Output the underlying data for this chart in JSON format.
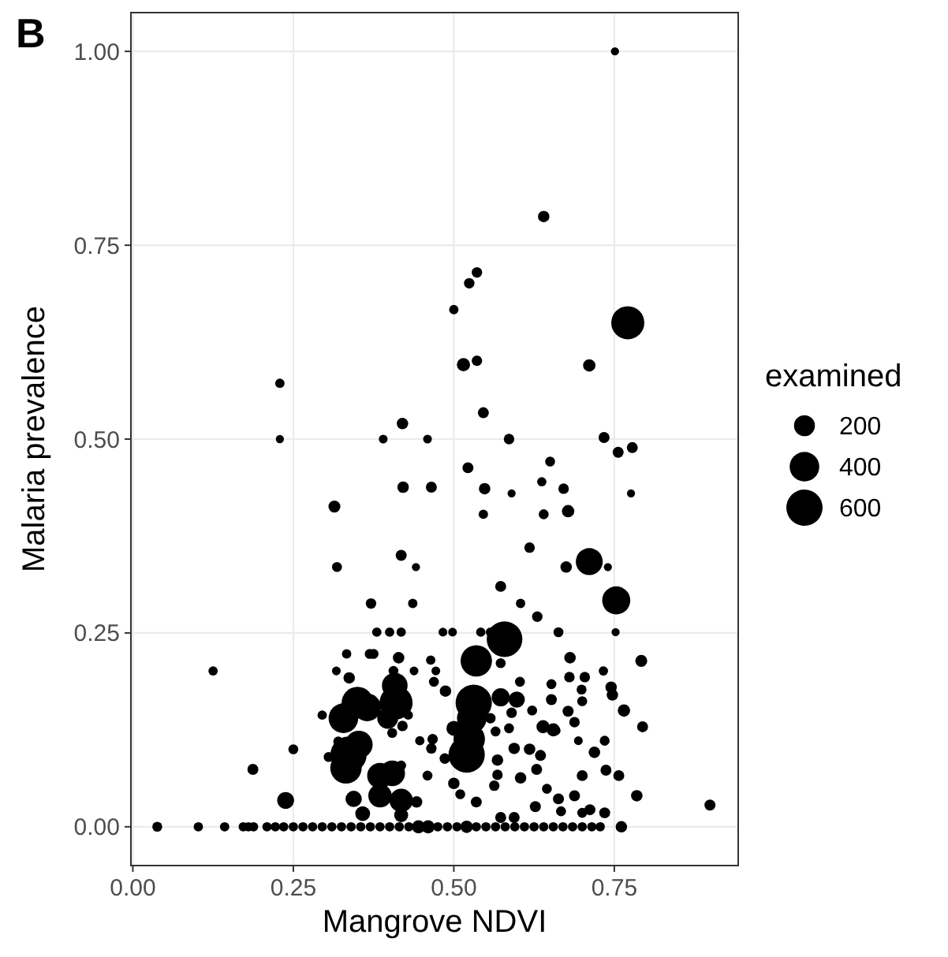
{
  "chart_data": {
    "type": "bubble",
    "xlabel": "Mangrove NDVI",
    "ylabel": "Malaria prevalence",
    "legend_title": "examined",
    "annotations": [
      "B"
    ],
    "x": [
      0.751,
      0.64,
      0.536,
      0.524,
      0.5,
      0.771,
      0.515,
      0.536,
      0.711,
      0.229,
      0.546,
      0.42,
      0.229,
      0.39,
      0.459,
      0.586,
      0.734,
      0.756,
      0.778,
      0.522,
      0.65,
      0.421,
      0.465,
      0.548,
      0.59,
      0.637,
      0.671,
      0.776,
      0.314,
      0.546,
      0.64,
      0.678,
      0.618,
      0.418,
      0.441,
      0.318,
      0.675,
      0.711,
      0.74,
      0.573,
      0.753,
      0.371,
      0.436,
      0.604,
      0.63,
      0.38,
      0.4,
      0.418,
      0.483,
      0.498,
      0.542,
      0.557,
      0.663,
      0.752,
      0.579,
      0.535,
      0.573,
      0.333,
      0.369,
      0.375,
      0.414,
      0.464,
      0.681,
      0.792,
      0.125,
      0.317,
      0.337,
      0.406,
      0.438,
      0.472,
      0.733,
      0.68,
      0.704,
      0.469,
      0.487,
      0.603,
      0.652,
      0.699,
      0.745,
      0.747,
      0.652,
      0.7,
      0.35,
      0.365,
      0.328,
      0.295,
      0.408,
      0.41,
      0.397,
      0.429,
      0.531,
      0.528,
      0.573,
      0.598,
      0.622,
      0.59,
      0.678,
      0.688,
      0.765,
      0.794,
      0.639,
      0.655,
      0.586,
      0.565,
      0.557,
      0.404,
      0.42,
      0.447,
      0.467,
      0.32,
      0.352,
      0.336,
      0.332,
      0.305,
      0.52,
      0.524,
      0.5,
      0.486,
      0.465,
      0.568,
      0.594,
      0.618,
      0.635,
      0.659,
      0.694,
      0.719,
      0.735,
      0.25,
      0.187,
      0.385,
      0.404,
      0.418,
      0.459,
      0.5,
      0.51,
      0.568,
      0.563,
      0.604,
      0.629,
      0.7,
      0.737,
      0.757,
      0.238,
      0.344,
      0.385,
      0.418,
      0.442,
      0.358,
      0.418,
      0.535,
      0.627,
      0.645,
      0.663,
      0.688,
      0.712,
      0.735,
      0.785,
      0.899,
      0.573,
      0.594,
      0.667,
      0.7,
      0.038,
      0.102,
      0.143,
      0.172,
      0.18,
      0.188,
      0.209,
      0.222,
      0.235,
      0.25,
      0.265,
      0.28,
      0.295,
      0.31,
      0.325,
      0.34,
      0.355,
      0.37,
      0.385,
      0.4,
      0.415,
      0.43,
      0.445,
      0.46,
      0.475,
      0.49,
      0.505,
      0.52,
      0.535,
      0.55,
      0.565,
      0.58,
      0.595,
      0.61,
      0.625,
      0.64,
      0.655,
      0.67,
      0.685,
      0.7,
      0.715,
      0.728,
      0.761
    ],
    "values": [
      1.0,
      0.787,
      0.715,
      0.701,
      0.667,
      0.65,
      0.596,
      0.601,
      0.595,
      0.572,
      0.534,
      0.52,
      0.5,
      0.5,
      0.5,
      0.5,
      0.502,
      0.483,
      0.489,
      0.463,
      0.471,
      0.438,
      0.438,
      0.436,
      0.43,
      0.445,
      0.436,
      0.43,
      0.413,
      0.403,
      0.403,
      0.407,
      0.36,
      0.35,
      0.335,
      0.335,
      0.335,
      0.342,
      0.335,
      0.31,
      0.292,
      0.288,
      0.288,
      0.288,
      0.271,
      0.251,
      0.251,
      0.251,
      0.251,
      0.251,
      0.251,
      0.251,
      0.251,
      0.251,
      0.242,
      0.214,
      0.211,
      0.223,
      0.223,
      0.223,
      0.218,
      0.215,
      0.218,
      0.214,
      0.201,
      0.201,
      0.192,
      0.201,
      0.201,
      0.201,
      0.201,
      0.193,
      0.193,
      0.187,
      0.175,
      0.187,
      0.184,
      0.177,
      0.18,
      0.17,
      0.164,
      0.162,
      0.16,
      0.154,
      0.14,
      0.144,
      0.182,
      0.16,
      0.14,
      0.144,
      0.16,
      0.14,
      0.167,
      0.164,
      0.15,
      0.147,
      0.149,
      0.135,
      0.15,
      0.129,
      0.129,
      0.125,
      0.127,
      0.123,
      0.14,
      0.121,
      0.13,
      0.111,
      0.113,
      0.11,
      0.106,
      0.093,
      0.076,
      0.09,
      0.093,
      0.113,
      0.127,
      0.088,
      0.101,
      0.086,
      0.101,
      0.1,
      0.092,
      0.124,
      0.111,
      0.096,
      0.111,
      0.1,
      0.074,
      0.066,
      0.069,
      0.079,
      0.066,
      0.056,
      0.042,
      0.067,
      0.053,
      0.063,
      0.074,
      0.066,
      0.073,
      0.066,
      0.034,
      0.036,
      0.04,
      0.034,
      0.032,
      0.017,
      0.015,
      0.032,
      0.026,
      0.049,
      0.036,
      0.04,
      0.022,
      0.018,
      0.04,
      0.028,
      0.012,
      0.012,
      0.02,
      0.018,
      0,
      0,
      0,
      0,
      0,
      0,
      0,
      0,
      0,
      0,
      0,
      0,
      0,
      0,
      0,
      0,
      0,
      0,
      0,
      0,
      0,
      0,
      0,
      0,
      0,
      0,
      0,
      0,
      0,
      0,
      0,
      0,
      0,
      0,
      0,
      0,
      0,
      0,
      0,
      0,
      0,
      0,
      0
    ],
    "sizes": [
      30,
      60,
      50,
      50,
      40,
      500,
      80,
      50,
      70,
      40,
      55,
      60,
      30,
      35,
      35,
      50,
      55,
      55,
      55,
      55,
      45,
      60,
      55,
      60,
      30,
      40,
      50,
      30,
      65,
      40,
      45,
      70,
      50,
      55,
      30,
      45,
      60,
      330,
      30,
      55,
      360,
      50,
      40,
      40,
      50,
      40,
      40,
      40,
      35,
      35,
      40,
      40,
      45,
      30,
      580,
      450,
      45,
      40,
      45,
      45,
      60,
      40,
      60,
      65,
      40,
      35,
      60,
      45,
      35,
      35,
      40,
      50,
      50,
      45,
      60,
      45,
      45,
      45,
      60,
      60,
      55,
      45,
      460,
      350,
      400,
      40,
      300,
      500,
      200,
      40,
      600,
      400,
      150,
      120,
      45,
      50,
      55,
      50,
      70,
      55,
      80,
      80,
      45,
      45,
      50,
      45,
      50,
      40,
      50,
      45,
      350,
      600,
      450,
      45,
      600,
      450,
      100,
      50,
      50,
      60,
      60,
      60,
      55,
      40,
      35,
      60,
      45,
      45,
      55,
      300,
      300,
      45,
      45,
      60,
      45,
      50,
      50,
      60,
      55,
      55,
      55,
      55,
      130,
      120,
      250,
      250,
      60,
      100,
      90,
      55,
      55,
      45,
      55,
      55,
      55,
      55,
      60,
      55,
      55,
      55,
      45,
      45,
      45,
      40,
      40,
      40,
      40,
      40,
      40,
      40,
      40,
      40,
      40,
      40,
      40,
      40,
      40,
      40,
      40,
      40,
      40,
      40,
      40,
      40,
      80,
      80,
      40,
      40,
      40,
      70,
      40,
      40,
      40,
      40,
      40,
      40,
      40,
      40,
      40,
      40,
      40,
      40,
      40,
      40,
      60
    ],
    "size_legend": [
      200,
      400,
      600
    ],
    "color": "#000000",
    "xlim": [
      -0.003,
      0.943
    ],
    "xticks": [
      {
        "value": 0,
        "label": "0.00"
      },
      0.25,
      {
        "value": 0.5,
        "label": "0.50"
      },
      0.75
    ],
    "ylim": [
      -0.05,
      1.05
    ],
    "yticks": [
      {
        "value": 0,
        "label": "0.00"
      },
      0.25,
      {
        "value": 0.5,
        "label": "0.50"
      },
      0.75,
      {
        "value": 1,
        "label": "1.00"
      }
    ],
    "grid": true
  }
}
